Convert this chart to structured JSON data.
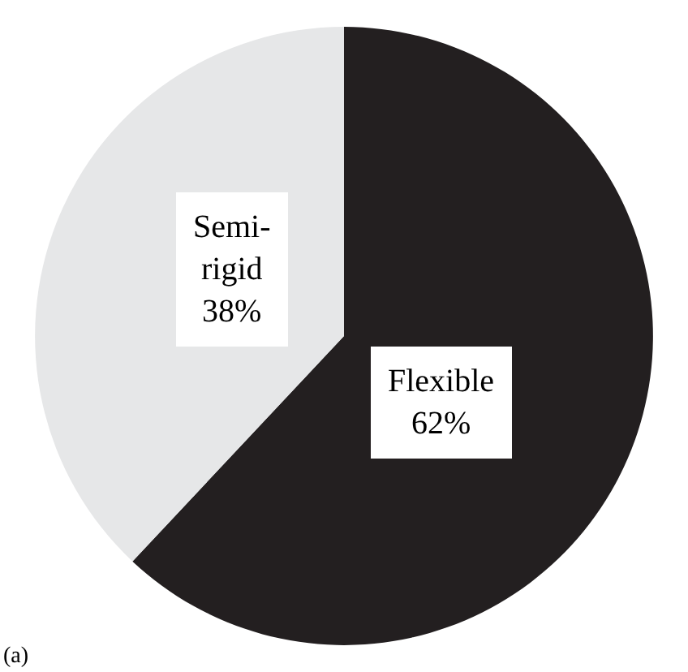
{
  "chart_data": {
    "type": "pie",
    "categories": [
      "Flexible",
      "Semi-\nrigid"
    ],
    "values": [
      62,
      38
    ],
    "colors": [
      "#231f20",
      "#e6e7e8"
    ],
    "value_labels": [
      "62%",
      "38%"
    ],
    "legend": false,
    "annotations": [
      "(a)"
    ]
  }
}
